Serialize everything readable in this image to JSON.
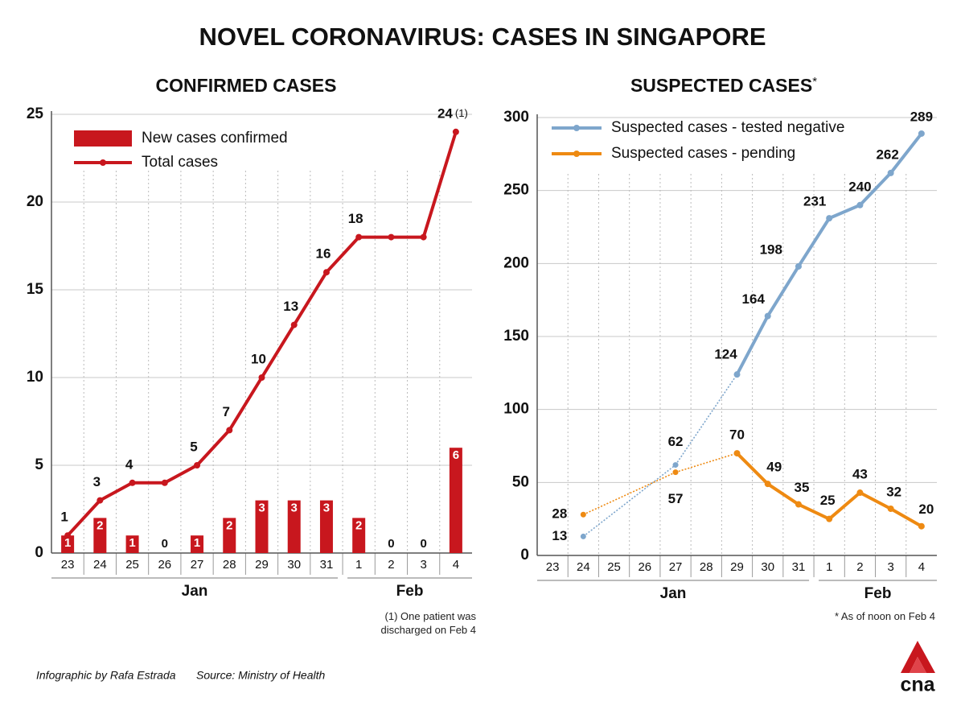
{
  "title": "NOVEL CORONAVIRUS: CASES IN SINGAPORE",
  "chart_data": [
    {
      "type": "combo",
      "title": "CONFIRMED CASES",
      "categories": [
        "23",
        "24",
        "25",
        "26",
        "27",
        "28",
        "29",
        "30",
        "31",
        "1",
        "2",
        "3",
        "4"
      ],
      "months": [
        "Jan",
        "Feb"
      ],
      "series": [
        {
          "name": "New cases confirmed",
          "type": "bar",
          "color": "#c8171e",
          "values": [
            1,
            2,
            1,
            0,
            1,
            2,
            3,
            3,
            3,
            2,
            0,
            0,
            6
          ]
        },
        {
          "name": "Total cases",
          "type": "line",
          "color": "#c8171e",
          "values": [
            1,
            3,
            4,
            4,
            5,
            7,
            10,
            13,
            16,
            18,
            18,
            18,
            24
          ]
        }
      ],
      "ylim": [
        0,
        25
      ],
      "yticks": [
        0,
        5,
        10,
        15,
        20,
        25
      ],
      "grid": true,
      "legend": "upper-left",
      "note_marker": "(1)",
      "footnote": "(1) One patient was discharged on Feb 4"
    },
    {
      "type": "line",
      "title": "SUSPECTED CASES",
      "title_note": "*",
      "categories": [
        "23",
        "24",
        "25",
        "26",
        "27",
        "28",
        "29",
        "30",
        "31",
        "1",
        "2",
        "3",
        "4"
      ],
      "months": [
        "Jan",
        "Feb"
      ],
      "series": [
        {
          "name": "Suspected cases - tested negative",
          "color": "#7ea6cc",
          "values": [
            null,
            13,
            null,
            null,
            62,
            null,
            124,
            164,
            198,
            231,
            240,
            262,
            289
          ]
        },
        {
          "name": "Suspected cases - pending",
          "color": "#ee8a12",
          "values": [
            null,
            28,
            null,
            null,
            57,
            null,
            70,
            49,
            35,
            25,
            43,
            32,
            20
          ]
        }
      ],
      "ylim": [
        0,
        300
      ],
      "yticks": [
        0,
        50,
        100,
        150,
        200,
        250,
        300
      ],
      "grid": true,
      "legend": "upper-left",
      "gaps": "dotted",
      "footnote": "* As of noon on Feb 4"
    }
  ],
  "credits": [
    "Infographic by Rafa Estrada",
    "Source: Ministry of Health"
  ],
  "logo": "cna"
}
